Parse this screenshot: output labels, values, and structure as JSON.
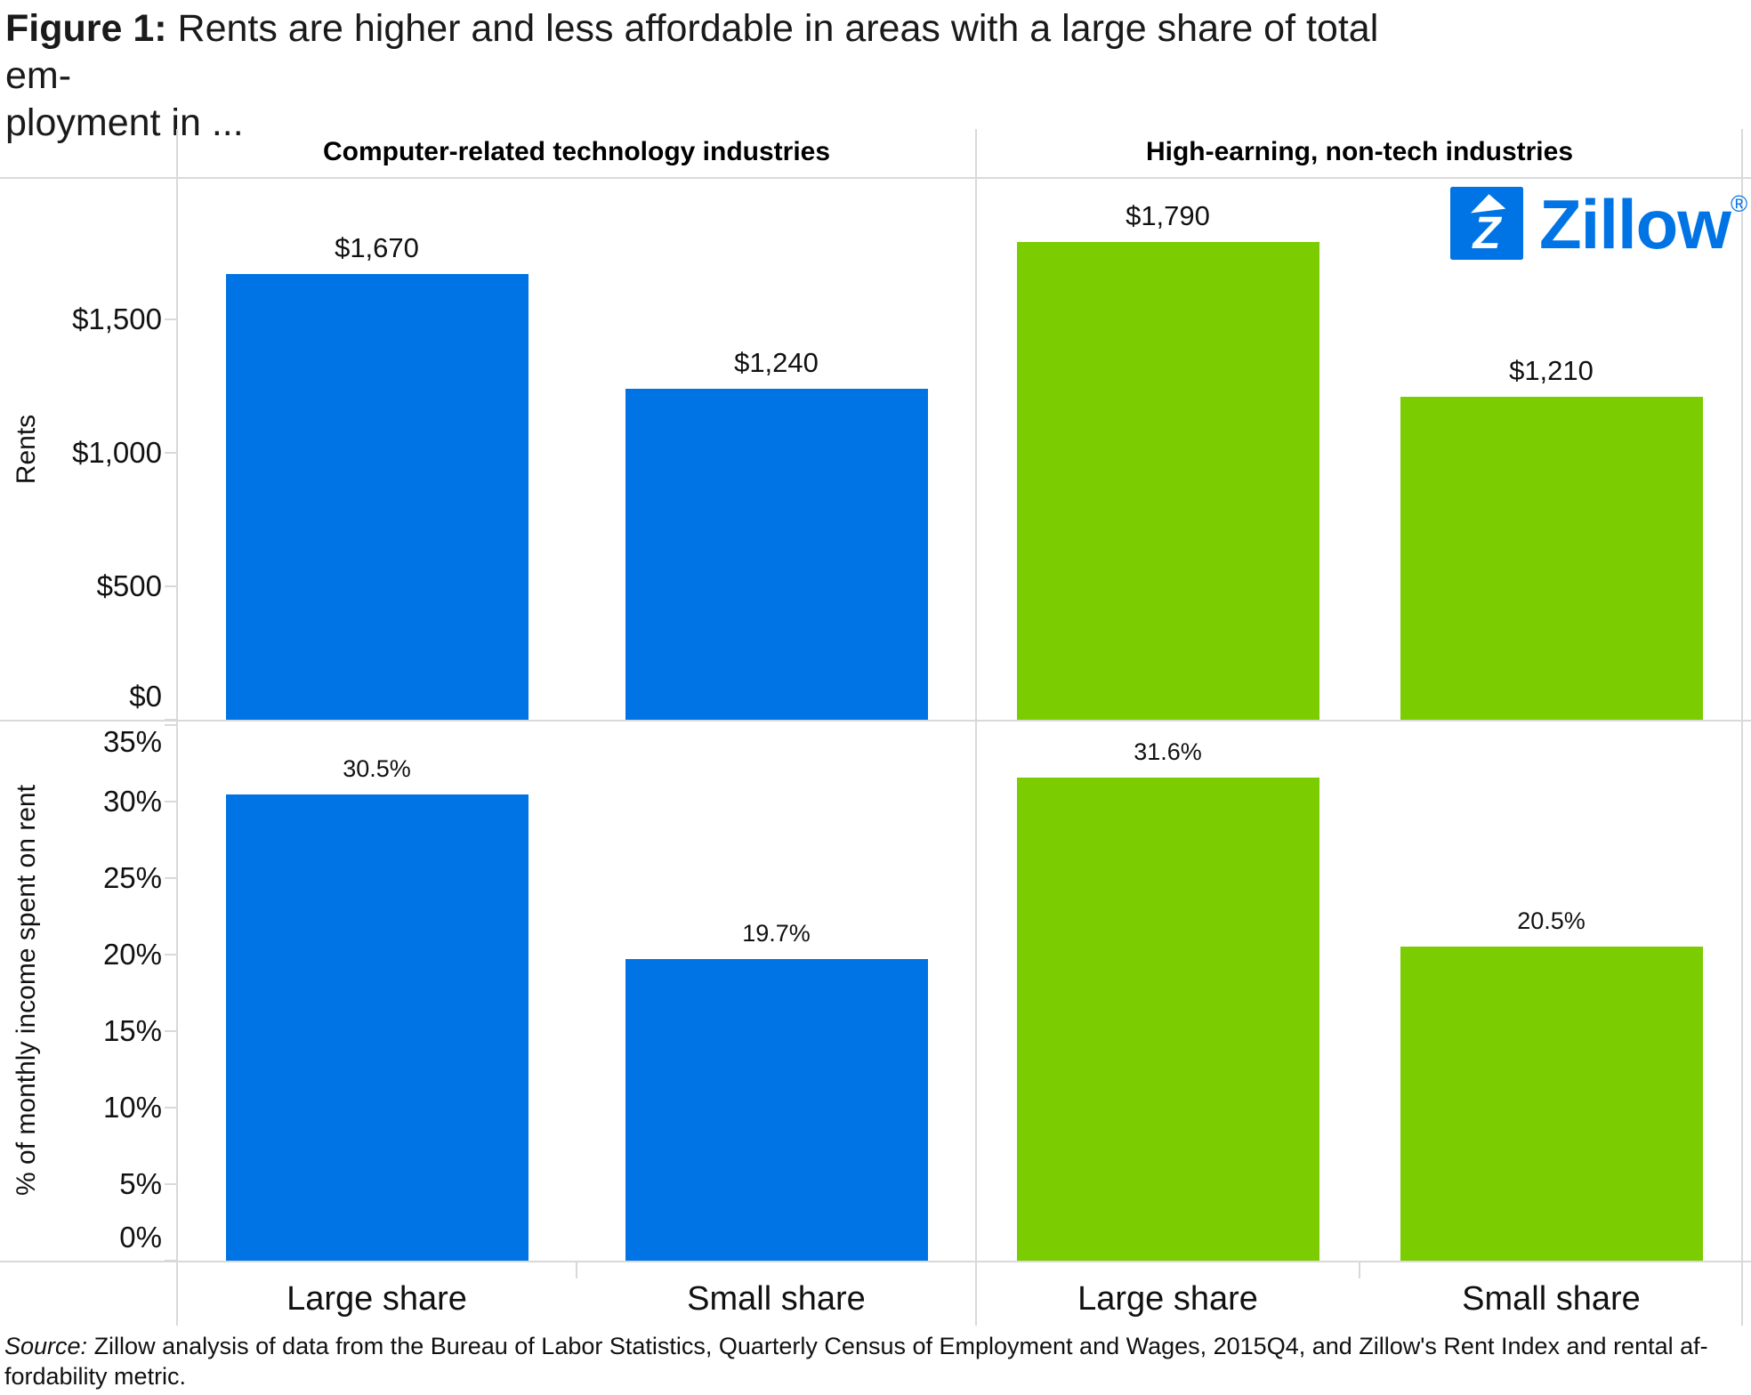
{
  "figure": {
    "title_prefix": "Figure 1:",
    "title_line1": " Rents are higher and less affordable in areas with a large share of total em-",
    "title_line2": "ployment in ...",
    "source_prefix": "Source:",
    "source_line1": " Zillow analysis of data from the Bureau of Labor Statistics, Quarterly Census of Employment and Wages, 2015Q4, and Zillow's Rent Index and rental af-",
    "source_line2": "fordability metric."
  },
  "logo": {
    "wordmark": "Zillow",
    "registered_mark": "®",
    "color": "#0074e4"
  },
  "panel_headers": [
    "Computer-related technology industries",
    "High-earning, non-tech industries"
  ],
  "colors": {
    "tech_blue": "#0074e4",
    "nontech_green": "#7ccc02",
    "line_gray": "#d9d9d9",
    "text_black": "#111111"
  },
  "chart_data": [
    {
      "type": "bar",
      "title": "Rents by share of employment",
      "ylabel": "Rents",
      "categories": [
        "Large share",
        "Small share"
      ],
      "series": [
        {
          "name": "Computer-related technology industries",
          "color": "#0074e4",
          "values": [
            1670,
            1240
          ],
          "value_labels": [
            "$1,670",
            "$1,240"
          ]
        },
        {
          "name": "High-earning, non-tech industries",
          "color": "#7ccc02",
          "values": [
            1790,
            1210
          ],
          "value_labels": [
            "$1,790",
            "$1,210"
          ]
        }
      ],
      "ytick_values": [
        0,
        500,
        1000,
        1500
      ],
      "ytick_labels": [
        "$0",
        "$500",
        "$1,000",
        "$1,500"
      ],
      "ylim": [
        0,
        2030
      ],
      "grid": false,
      "legend": "none"
    },
    {
      "type": "bar",
      "title": "Rental affordability by share of employment",
      "ylabel": "% of monthly income spent on rent",
      "categories": [
        "Large share",
        "Small share"
      ],
      "series": [
        {
          "name": "Computer-related technology industries",
          "color": "#0074e4",
          "values": [
            30.5,
            19.7
          ],
          "value_labels": [
            "30.5%",
            "19.7%"
          ]
        },
        {
          "name": "High-earning, non-tech industries",
          "color": "#7ccc02",
          "values": [
            31.6,
            20.5
          ],
          "value_labels": [
            "31.6%",
            "20.5%"
          ]
        }
      ],
      "ytick_values": [
        0,
        5,
        10,
        15,
        20,
        25,
        30,
        35
      ],
      "ytick_labels": [
        "0%",
        "5%",
        "10%",
        "15%",
        "20%",
        "25%",
        "30%",
        "35%"
      ],
      "ylim": [
        0,
        35.3
      ],
      "grid": false,
      "legend": "none"
    }
  ]
}
